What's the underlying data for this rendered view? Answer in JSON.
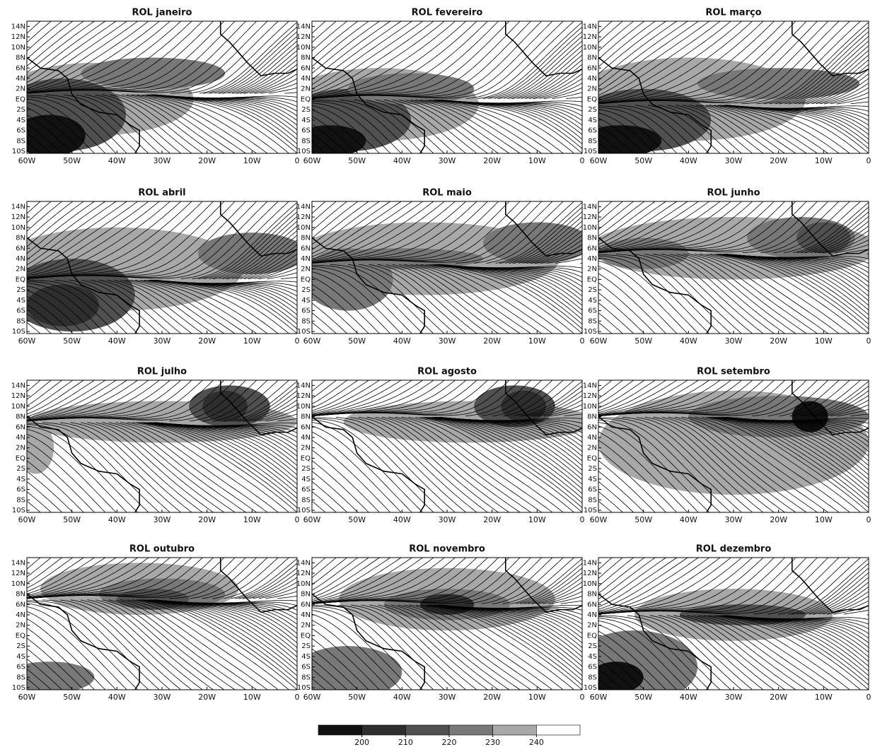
{
  "panels": [
    {
      "title": "ROL janeiro"
    },
    {
      "title": "ROL fevereiro"
    },
    {
      "title": "ROL março"
    },
    {
      "title": "ROL abril"
    },
    {
      "title": "ROL maio"
    },
    {
      "title": "ROL junho"
    },
    {
      "title": "ROL julho"
    },
    {
      "title": "ROL agosto"
    },
    {
      "title": "ROL setembro"
    },
    {
      "title": "ROL outubro"
    },
    {
      "title": "ROL novembro"
    },
    {
      "title": "ROL dezembro"
    }
  ],
  "xlim": [
    -60,
    0
  ],
  "ylim": [
    -10.4,
    15
  ],
  "x_ticks": [
    {
      "value": -60,
      "label": "60W"
    },
    {
      "value": -50,
      "label": "50W"
    },
    {
      "value": -40,
      "label": "40W"
    },
    {
      "value": -30,
      "label": "30W"
    },
    {
      "value": -20,
      "label": "20W"
    },
    {
      "value": -10,
      "label": "10W"
    },
    0
  ],
  "y_ticks": [
    {
      "value": 14,
      "label": "14N"
    },
    {
      "value": 12,
      "label": "12N"
    },
    {
      "value": 10,
      "label": "10N"
    },
    {
      "value": 8,
      "label": "8N"
    },
    {
      "value": 6,
      "label": "6N"
    },
    {
      "value": 4,
      "label": "4N"
    },
    {
      "value": 2,
      "label": "2N"
    },
    {
      "value": 0,
      "label": "EQ"
    },
    {
      "value": -2,
      "label": "2S"
    },
    {
      "value": -4,
      "label": "4S"
    },
    {
      "value": -6,
      "label": "6S"
    },
    {
      "value": -8,
      "label": "8S"
    },
    {
      "value": -10,
      "label": "10S"
    }
  ],
  "colorbar": {
    "lim": [
      190,
      250
    ],
    "ticks": [
      200,
      210,
      220,
      230,
      240
    ],
    "colors": [
      "#111111",
      "#2e2e2e",
      "#505050",
      "#787878",
      "#a8a8a8",
      "#ffffff"
    ]
  }
}
